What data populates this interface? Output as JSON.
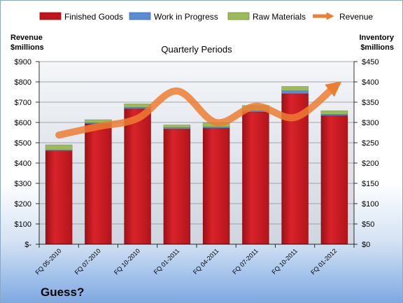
{
  "chart_data": {
    "type": "bar",
    "title": "Quarterly Periods",
    "footer": "Guess?",
    "categories": [
      "FQ 05-2010",
      "FQ 07-2010",
      "FQ 10-2010",
      "FQ 01-2011",
      "FQ 04-2011",
      "FQ 07-2011",
      "FQ 10-2011",
      "FQ 01-2012"
    ],
    "stacked": true,
    "series": [
      {
        "name": "Finished Goods",
        "axis": "right",
        "color": "#c0141c",
        "values": [
          230,
          297,
          334,
          284,
          286,
          326,
          371,
          317
        ]
      },
      {
        "name": "Work in Progress",
        "axis": "right",
        "color": "#5a8cd6",
        "values": [
          2,
          2,
          3,
          3,
          3,
          3,
          7,
          3
        ]
      },
      {
        "name": "Raw Materials",
        "axis": "right",
        "color": "#9bbb59",
        "values": [
          13,
          8,
          9,
          7,
          10,
          13,
          11,
          9
        ]
      }
    ],
    "line": {
      "name": "Revenue",
      "axis": "left",
      "color": "#ed7d31",
      "values": [
        538,
        580,
        620,
        755,
        600,
        680,
        625,
        775
      ]
    },
    "left_axis": {
      "label_line1": "Revenue",
      "label_line2": "$millions",
      "min": 0,
      "max": 900,
      "step": 100,
      "ticks": [
        "$-",
        "$100",
        "$200",
        "$300",
        "$400",
        "$500",
        "$600",
        "$700",
        "$800",
        "$900"
      ]
    },
    "right_axis": {
      "label_line1": "Inventory",
      "label_line2": "$millions",
      "min": 0,
      "max": 450,
      "step": 50,
      "ticks": [
        "$0",
        "$50",
        "$100",
        "$150",
        "$200",
        "$250",
        "$300",
        "$350",
        "$400",
        "$450"
      ]
    },
    "grid": true,
    "legend_position": "top"
  }
}
